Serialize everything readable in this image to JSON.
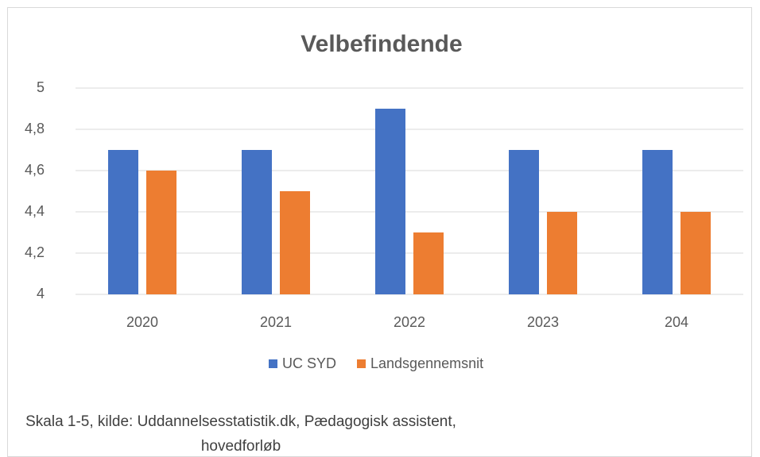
{
  "chart_data": {
    "type": "bar",
    "title": "Velbefindende",
    "categories": [
      "2020",
      "2021",
      "2022",
      "2023",
      "204"
    ],
    "series": [
      {
        "name": "UC SYD",
        "color": "#4472c4",
        "values": [
          4.7,
          4.7,
          4.9,
          4.7,
          4.7
        ]
      },
      {
        "name": "Landsgennemsnit",
        "color": "#ed7d31",
        "values": [
          4.6,
          4.5,
          4.3,
          4.4,
          4.4
        ]
      }
    ],
    "ylim": [
      4,
      5
    ],
    "yticks": [
      4,
      {
        "value": 4.2,
        "label": "4,2"
      },
      {
        "value": 4.4,
        "label": "4,4"
      },
      {
        "value": 4.6,
        "label": "4,6"
      },
      {
        "value": 4.8,
        "label": "4,8"
      },
      5
    ],
    "grid": true,
    "legend": "bottom",
    "caption": [
      "Skala 1-5, kilde: Uddannelsesstatistik.dk, Pædagogisk assistent,",
      "hovedforløb"
    ]
  }
}
